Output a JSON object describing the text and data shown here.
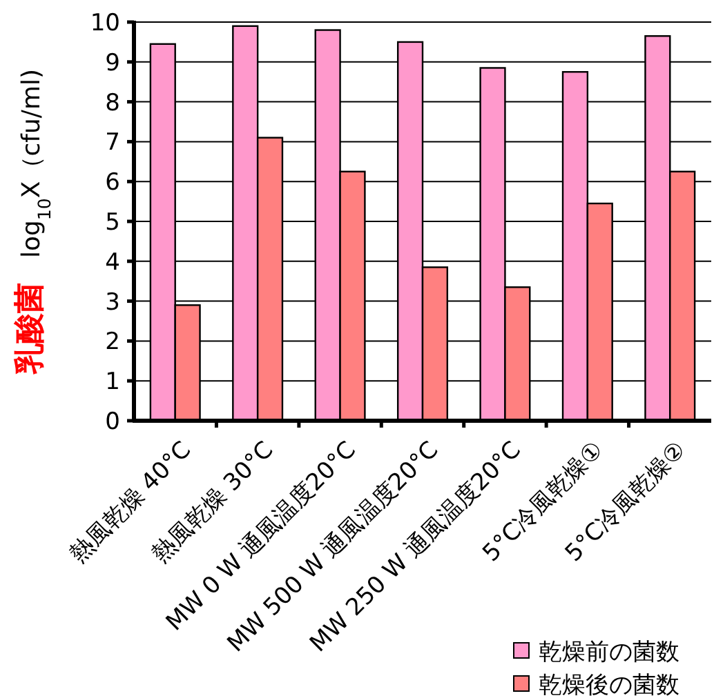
{
  "chart_data": {
    "type": "bar",
    "ylabel": "乳酸菌　log$_{10}$X（cfu/ml)",
    "categories": [
      "熱風乾燥 40°C",
      "熱風乾燥 30°C",
      "MW 0 W 通風温度20°C",
      "MW 500 W 通風温度20°C",
      "MW 250 W 通風温度20°C",
      "5°C冷風乾燥①",
      "5°C冷風乾燥②"
    ],
    "series": [
      {
        "name": "乾燥前の菌数",
        "color": "#ff99cc",
        "values": [
          9.45,
          9.9,
          9.8,
          9.5,
          8.85,
          8.75,
          9.65
        ]
      },
      {
        "name": "乾燥後の菌数",
        "color": "#ff8080",
        "values": [
          2.9,
          7.1,
          6.25,
          3.85,
          3.35,
          5.45,
          6.25
        ]
      }
    ],
    "ylim": [
      0,
      10
    ],
    "yticks": [
      0,
      1,
      2,
      3,
      4,
      5,
      6,
      7,
      8,
      9,
      10
    ],
    "grid": "y",
    "legend": "bottom right"
  }
}
